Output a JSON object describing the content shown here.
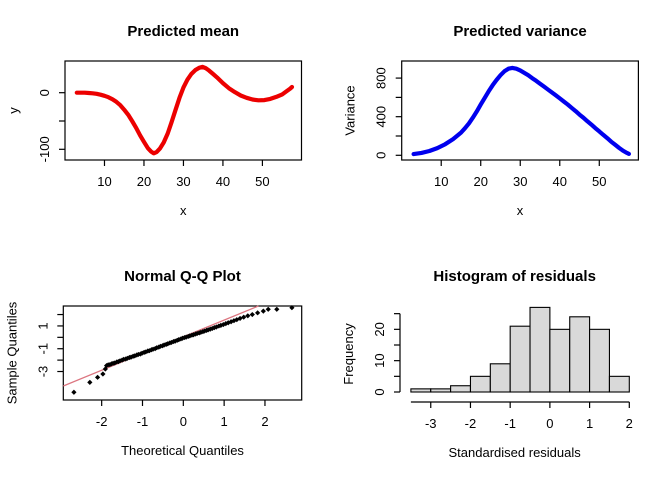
{
  "figure": {
    "background": "#ffffff",
    "text_color": "#000000"
  },
  "chart_data": [
    {
      "id": "predicted-mean",
      "type": "line",
      "title": "Predicted mean",
      "xlabel": "x",
      "ylabel": "y",
      "line_color": "#EC0000",
      "xlim": [
        0,
        59.9
      ],
      "ylim": [
        -118.9,
        56
      ],
      "x_ticks": [
        10,
        20,
        30,
        40,
        50
      ],
      "x_tick_labels": [
        "10",
        "20",
        "30",
        "40",
        "50"
      ],
      "y_ticks": [
        0,
        -50,
        -100
      ],
      "y_tick_labels": [
        "0",
        "",
        "-100"
      ],
      "points": [
        [
          3,
          0
        ],
        [
          4,
          0
        ],
        [
          5,
          0
        ],
        [
          6,
          -0.5
        ],
        [
          7,
          -1
        ],
        [
          8,
          -2
        ],
        [
          9,
          -3.5
        ],
        [
          10,
          -5.5
        ],
        [
          11,
          -8
        ],
        [
          12,
          -11.5
        ],
        [
          13,
          -16
        ],
        [
          14,
          -22
        ],
        [
          15,
          -30
        ],
        [
          16,
          -39
        ],
        [
          17,
          -50
        ],
        [
          18,
          -62
        ],
        [
          19,
          -75
        ],
        [
          20,
          -87
        ],
        [
          21,
          -98
        ],
        [
          21.8,
          -104
        ],
        [
          22.5,
          -107
        ],
        [
          23.2,
          -105
        ],
        [
          24,
          -99
        ],
        [
          25,
          -88
        ],
        [
          26,
          -72
        ],
        [
          27,
          -52
        ],
        [
          28,
          -30
        ],
        [
          29,
          -9
        ],
        [
          30,
          9
        ],
        [
          31,
          23
        ],
        [
          32,
          33
        ],
        [
          33,
          40
        ],
        [
          34,
          44
        ],
        [
          34.8,
          45.5
        ],
        [
          35.6,
          43.5
        ],
        [
          36.5,
          39
        ],
        [
          37.5,
          33
        ],
        [
          38.5,
          27
        ],
        [
          40,
          17
        ],
        [
          41.5,
          8
        ],
        [
          43,
          1
        ],
        [
          44.5,
          -5
        ],
        [
          46,
          -9
        ],
        [
          47.5,
          -12
        ],
        [
          49,
          -13.5
        ],
        [
          50.5,
          -13
        ],
        [
          52,
          -11
        ],
        [
          53.5,
          -7.5
        ],
        [
          55,
          -3
        ],
        [
          56,
          2
        ],
        [
          57,
          7
        ],
        [
          57.5,
          10
        ]
      ]
    },
    {
      "id": "predicted-variance",
      "type": "line",
      "title": "Predicted variance",
      "xlabel": "x",
      "ylabel": "Variance",
      "line_color": "#0000EE",
      "xlim": [
        0,
        59.9
      ],
      "ylim": [
        -48.7,
        977
      ],
      "x_ticks": [
        10,
        20,
        30,
        40,
        50
      ],
      "x_tick_labels": [
        "10",
        "20",
        "30",
        "40",
        "50"
      ],
      "y_ticks": [
        0,
        200,
        400,
        600,
        800
      ],
      "y_tick_labels": [
        "0",
        "",
        "400",
        "",
        "800"
      ],
      "points": [
        [
          3,
          12
        ],
        [
          5,
          25
        ],
        [
          7,
          45
        ],
        [
          9,
          75
        ],
        [
          11,
          115
        ],
        [
          13,
          168
        ],
        [
          15,
          235
        ],
        [
          16,
          280
        ],
        [
          17,
          330
        ],
        [
          18,
          390
        ],
        [
          19,
          455
        ],
        [
          20,
          525
        ],
        [
          21,
          595
        ],
        [
          22,
          662
        ],
        [
          23,
          725
        ],
        [
          24,
          780
        ],
        [
          25,
          830
        ],
        [
          26,
          870
        ],
        [
          27,
          897
        ],
        [
          28,
          905
        ],
        [
          29,
          897
        ],
        [
          30,
          880
        ],
        [
          31,
          855
        ],
        [
          32,
          830
        ],
        [
          33,
          800
        ],
        [
          34,
          772
        ],
        [
          35,
          742
        ],
        [
          36,
          712
        ],
        [
          37,
          682
        ],
        [
          38,
          652
        ],
        [
          39,
          622
        ],
        [
          40,
          590
        ],
        [
          41,
          558
        ],
        [
          42,
          526
        ],
        [
          43,
          492
        ],
        [
          44,
          458
        ],
        [
          45,
          422
        ],
        [
          46,
          388
        ],
        [
          47,
          352
        ],
        [
          48,
          318
        ],
        [
          49,
          282
        ],
        [
          50,
          248
        ],
        [
          51,
          212
        ],
        [
          52,
          178
        ],
        [
          53,
          142
        ],
        [
          54,
          110
        ],
        [
          55,
          78
        ],
        [
          56,
          48
        ],
        [
          57,
          25
        ],
        [
          57.5,
          15
        ]
      ]
    },
    {
      "id": "qq-plot",
      "type": "scatter",
      "title": "Normal Q-Q Plot",
      "xlabel": "Theoretical Quantiles",
      "ylabel": "Sample Quantiles",
      "point_color": "#000000",
      "ref_line_color": "#DC7580",
      "xlim": [
        -2.94,
        2.9
      ],
      "ylim": [
        -5.5,
        2.75
      ],
      "x_ticks": [
        -2,
        -1,
        0,
        1,
        2
      ],
      "x_tick_labels": [
        "-2",
        "-1",
        "0",
        "1",
        "2"
      ],
      "y_ticks": [
        -3,
        -2,
        -1,
        0,
        1,
        2
      ],
      "y_tick_labels": [
        "-3",
        "",
        "-1",
        "",
        "1",
        ""
      ],
      "ref_line": {
        "x1": -2.94,
        "y1": -4.27,
        "x2": 1.84,
        "y2": 2.75
      },
      "points": [
        [
          -2.68,
          -4.82
        ],
        [
          -2.29,
          -3.95
        ],
        [
          -2.1,
          -3.51
        ],
        [
          -1.97,
          -3.22
        ],
        [
          -1.91,
          -2.78
        ],
        [
          -1.88,
          -2.48
        ],
        [
          -1.84,
          -2.41
        ],
        [
          -1.8,
          -2.4
        ],
        [
          -1.76,
          -2.33
        ],
        [
          -1.72,
          -2.28
        ],
        [
          -1.68,
          -2.25
        ],
        [
          -1.63,
          -2.16
        ],
        [
          -1.59,
          -2.13
        ],
        [
          -1.55,
          -2.06
        ],
        [
          -1.5,
          -2.0
        ],
        [
          -1.46,
          -1.93
        ],
        [
          -1.41,
          -1.9
        ],
        [
          -1.37,
          -1.84
        ],
        [
          -1.32,
          -1.77
        ],
        [
          -1.28,
          -1.74
        ],
        [
          -1.23,
          -1.66
        ],
        [
          -1.19,
          -1.63
        ],
        [
          -1.14,
          -1.55
        ],
        [
          -1.1,
          -1.5
        ],
        [
          -1.05,
          -1.46
        ],
        [
          -1.01,
          -1.39
        ],
        [
          -0.96,
          -1.32
        ],
        [
          -0.92,
          -1.28
        ],
        [
          -0.87,
          -1.2
        ],
        [
          -0.83,
          -1.17
        ],
        [
          -0.78,
          -1.09
        ],
        [
          -0.74,
          -1.04
        ],
        [
          -0.69,
          -0.99
        ],
        [
          -0.65,
          -0.91
        ],
        [
          -0.6,
          -0.86
        ],
        [
          -0.56,
          -0.79
        ],
        [
          -0.51,
          -0.74
        ],
        [
          -0.47,
          -0.67
        ],
        [
          -0.42,
          -0.62
        ],
        [
          -0.38,
          -0.56
        ],
        [
          -0.33,
          -0.49
        ],
        [
          -0.29,
          -0.45
        ],
        [
          -0.24,
          -0.37
        ],
        [
          -0.2,
          -0.33
        ],
        [
          -0.15,
          -0.26
        ],
        [
          -0.11,
          -0.2
        ],
        [
          -0.06,
          -0.14
        ],
        [
          -0.02,
          -0.08
        ],
        [
          0.03,
          -0.02
        ],
        [
          0.07,
          0.02
        ],
        [
          0.12,
          0.08
        ],
        [
          0.16,
          0.13
        ],
        [
          0.21,
          0.19
        ],
        [
          0.25,
          0.23
        ],
        [
          0.3,
          0.29
        ],
        [
          0.34,
          0.34
        ],
        [
          0.39,
          0.39
        ],
        [
          0.43,
          0.44
        ],
        [
          0.48,
          0.5
        ],
        [
          0.52,
          0.55
        ],
        [
          0.57,
          0.61
        ],
        [
          0.61,
          0.66
        ],
        [
          0.66,
          0.72
        ],
        [
          0.71,
          0.78
        ],
        [
          0.76,
          0.85
        ],
        [
          0.81,
          0.91
        ],
        [
          0.87,
          0.99
        ],
        [
          0.92,
          1.05
        ],
        [
          0.98,
          1.12
        ],
        [
          1.04,
          1.2
        ],
        [
          1.1,
          1.28
        ],
        [
          1.17,
          1.37
        ],
        [
          1.24,
          1.46
        ],
        [
          1.31,
          1.55
        ],
        [
          1.39,
          1.66
        ],
        [
          1.48,
          1.77
        ],
        [
          1.58,
          1.89
        ],
        [
          1.69,
          2.0
        ],
        [
          1.82,
          2.15
        ],
        [
          1.96,
          2.3
        ],
        [
          2.08,
          2.46
        ],
        [
          2.29,
          2.46
        ],
        [
          2.66,
          2.6
        ]
      ]
    },
    {
      "id": "histogram",
      "type": "bar",
      "title": "Histogram of residuals",
      "xlabel": "Standardised residuals",
      "ylabel": "Frequency",
      "bar_fill": "#D9D9D9",
      "bar_stroke": "#000000",
      "xlim": [
        -3.5,
        2
      ],
      "ylim": [
        0,
        27
      ],
      "bin_edges": [
        -3.5,
        -3,
        -2.5,
        -2,
        -1.5,
        -1,
        -0.5,
        0,
        0.5,
        1,
        1.5,
        2
      ],
      "counts": [
        1,
        1,
        2,
        5,
        9,
        21,
        27,
        20,
        24,
        20,
        5
      ],
      "x_ticks": [
        -3,
        -2,
        -1,
        0,
        1,
        2
      ],
      "x_tick_labels": [
        "-3",
        "-2",
        "-1",
        "0",
        "1",
        "2"
      ],
      "y_ticks": [
        0,
        5,
        10,
        15,
        20,
        25
      ],
      "y_tick_labels": [
        "0",
        "",
        "10",
        "",
        "20",
        ""
      ]
    }
  ]
}
